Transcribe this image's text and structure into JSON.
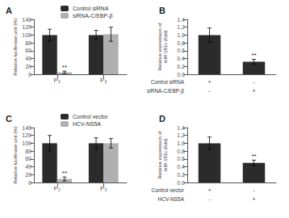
{
  "chart_data": [
    {
      "type": "bar",
      "title": "A",
      "categories": [
        "P₂",
        "P₃"
      ],
      "series": [
        {
          "name": "Control siRNA",
          "color": "#2b2b2b",
          "values": [
            100,
            100
          ],
          "errors": [
            15,
            12
          ]
        },
        {
          "name": "siRNA-C/EBP-β",
          "color": "#b0b0b0",
          "values": [
            5,
            102
          ],
          "errors": [
            3,
            18
          ]
        }
      ],
      "ylabel": "Relative luciferase unit (%)",
      "ylim": [
        0,
        140
      ],
      "yticks": [
        0,
        20,
        40,
        60,
        80,
        100,
        120,
        140
      ],
      "annotations": [
        {
          "text": "**",
          "category": "P₂",
          "series": "siRNA-C/EBP-β"
        }
      ],
      "legend": "upper center",
      "grid": false
    },
    {
      "type": "bar",
      "title": "B",
      "categories": [
        null,
        null
      ],
      "values": [
        1.0,
        0.32
      ],
      "errors": [
        0.18,
        0.06
      ],
      "color": "#2b2b2b",
      "ylabel": "Relative expression of\nmiR-181c (fold)",
      "ylim": [
        0.0,
        1.4
      ],
      "yticks": [
        {
          "value": 0.0,
          "label": "0.0"
        },
        0.2,
        0.4,
        0.6,
        0.8,
        {
          "value": 1.0,
          "label": "1.0"
        },
        1.2,
        1.4
      ],
      "annotations": [
        {
          "text": "**",
          "category_index": 1
        }
      ],
      "row_labels": [
        "Control siRNA",
        "siRNA-C/EBP-β"
      ],
      "col_signs": [
        [
          "+",
          "-"
        ],
        [
          "-",
          "+"
        ]
      ],
      "tick_labels": "y",
      "grid": false
    },
    {
      "type": "bar",
      "title": "C",
      "categories": [
        "P₂",
        "P₃"
      ],
      "series": [
        {
          "name": "Control vector",
          "color": "#2b2b2b",
          "values": [
            100,
            100
          ],
          "errors": [
            20,
            14
          ]
        },
        {
          "name": "HCV-NS5A",
          "color": "#b0b0b0",
          "values": [
            9,
            100
          ],
          "errors": [
            5,
            12
          ]
        }
      ],
      "ylabel": "Relative luciferase unit (%)",
      "ylim": [
        0,
        140
      ],
      "yticks": [
        0,
        20,
        40,
        60,
        80,
        100,
        120,
        140
      ],
      "annotations": [
        {
          "text": "**",
          "category": "P₂",
          "series": "HCV-NS5A"
        }
      ],
      "legend": "upper center",
      "grid": false
    },
    {
      "type": "bar",
      "title": "D",
      "categories": [
        null,
        null
      ],
      "values": [
        1.0,
        0.5
      ],
      "errors": [
        0.16,
        0.07
      ],
      "color": "#2b2b2b",
      "ylabel": "Relative expression of\nmiR-181c (fold)",
      "ylim": [
        0.0,
        1.4
      ],
      "yticks": [
        {
          "value": 0.0,
          "label": "0.0"
        },
        0.2,
        0.4,
        0.6,
        0.8,
        {
          "value": 1.0,
          "label": "1.0"
        },
        1.2,
        1.4
      ],
      "annotations": [
        {
          "text": "**",
          "category_index": 1
        }
      ],
      "row_labels": [
        "Control vector",
        "HCV-NS5A"
      ],
      "col_signs": [
        [
          "+",
          "-"
        ],
        [
          "-",
          "+"
        ]
      ],
      "tick_labels": "y",
      "grid": false
    }
  ]
}
